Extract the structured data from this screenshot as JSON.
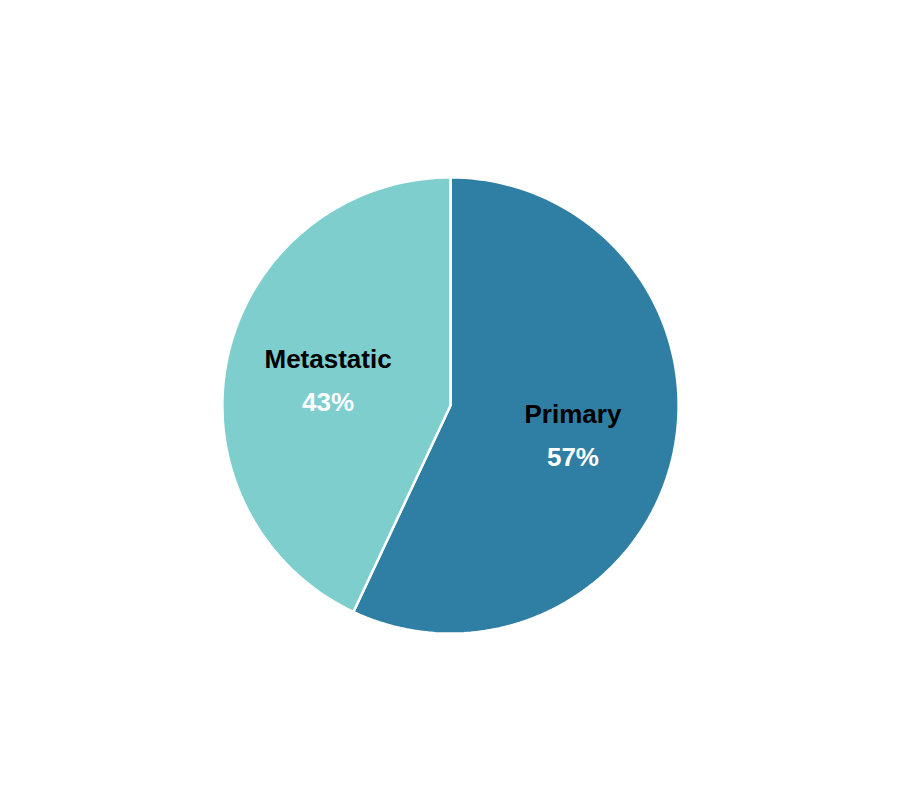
{
  "chart_data": {
    "type": "pie",
    "categories": [
      "Primary",
      "Metastatic"
    ],
    "values": [
      57,
      43
    ],
    "value_labels": [
      "57%",
      "43%"
    ],
    "colors": [
      "#2e7fa3",
      "#7ecece"
    ],
    "data_labels": true
  }
}
